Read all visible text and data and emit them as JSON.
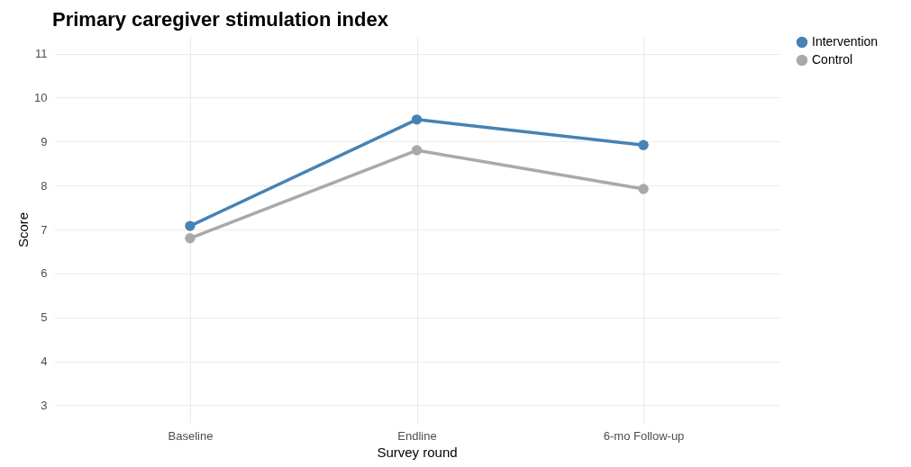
{
  "chart_data": {
    "type": "line",
    "title": "Primary caregiver stimulation index",
    "xlabel": "Survey round",
    "ylabel": "Score",
    "categories": [
      "Baseline",
      "Endline",
      "6-mo Follow-up"
    ],
    "series": [
      {
        "name": "Intervention",
        "color": "#4682b4",
        "values": [
          7.08,
          9.5,
          8.92
        ]
      },
      {
        "name": "Control",
        "color": "#a9a9a9",
        "values": [
          6.8,
          8.8,
          7.92
        ]
      }
    ],
    "ylim": [
      2.6,
      11.4
    ],
    "yticks": [
      3,
      4,
      5,
      6,
      7,
      8,
      9,
      10,
      11
    ],
    "grid": true,
    "legend": "right",
    "marker": "circle",
    "line_style": "solid"
  }
}
